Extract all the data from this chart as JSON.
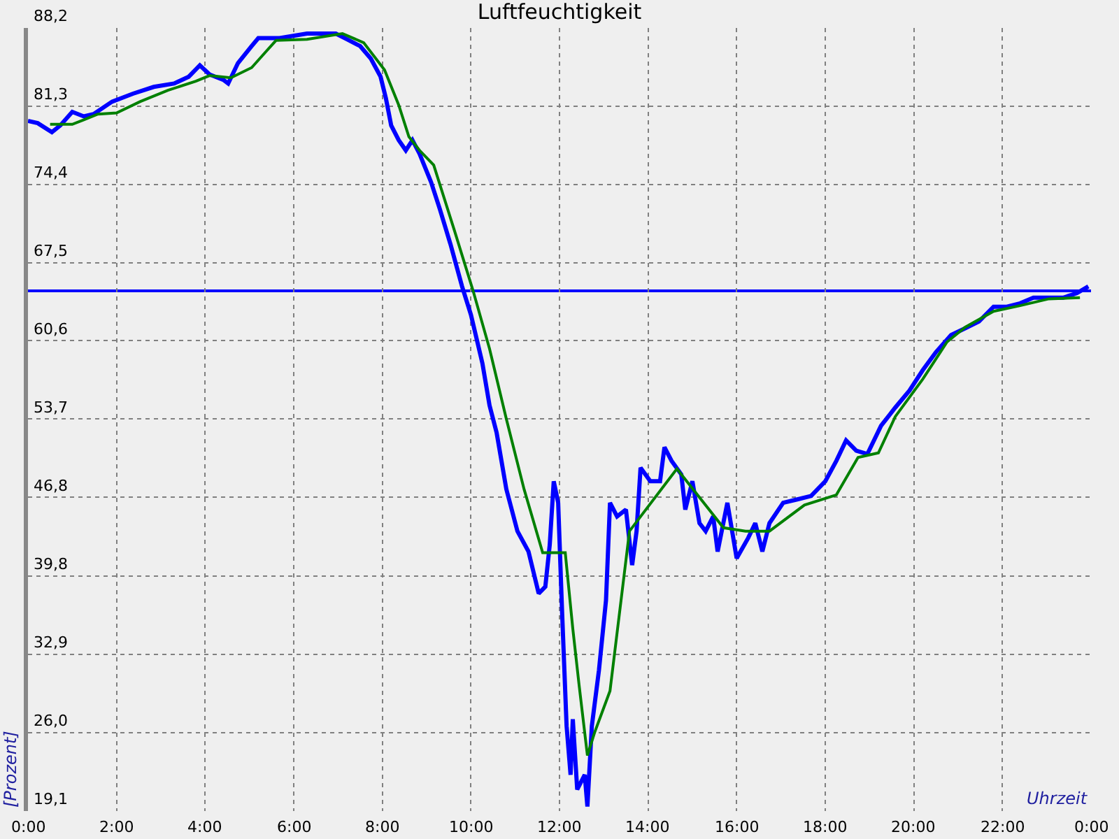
{
  "chart_data": {
    "type": "line",
    "title": "Luftfeuchtigkeit",
    "xlabel": "Uhrzeit",
    "ylabel": "[Prozent]",
    "xlim": [
      0,
      24
    ],
    "ylim": [
      19.1,
      88.2
    ],
    "xticks": [
      {
        "value": 0,
        "label": "0:00"
      },
      {
        "value": 2,
        "label": "2:00"
      },
      {
        "value": 4,
        "label": "4:00"
      },
      {
        "value": 6,
        "label": "6:00"
      },
      {
        "value": 8,
        "label": "8:00"
      },
      {
        "value": 10,
        "label": "10:00"
      },
      {
        "value": 12,
        "label": "12:00"
      },
      {
        "value": 14,
        "label": "14:00"
      },
      {
        "value": 16,
        "label": "16:00"
      },
      {
        "value": 18,
        "label": "18:00"
      },
      {
        "value": 20,
        "label": "20:00"
      },
      {
        "value": 22,
        "label": "22:00"
      },
      {
        "value": 24,
        "label": "0:00"
      }
    ],
    "yticks": [
      {
        "value": 19.1,
        "label": "19,1"
      },
      {
        "value": 26.0,
        "label": "26,0"
      },
      {
        "value": 32.9,
        "label": "32,9"
      },
      {
        "value": 39.8,
        "label": "39,8"
      },
      {
        "value": 46.8,
        "label": "46,8"
      },
      {
        "value": 53.7,
        "label": "53,7"
      },
      {
        "value": 60.6,
        "label": "60,6"
      },
      {
        "value": 67.5,
        "label": "67,5"
      },
      {
        "value": 74.4,
        "label": "74,4"
      },
      {
        "value": 81.3,
        "label": "81,3"
      },
      {
        "value": 88.2,
        "label": "88,2"
      }
    ],
    "grid": true,
    "marker": "none",
    "line_style": "solid",
    "ref_lines": [
      {
        "axis": "y",
        "value": 65.0,
        "color": "#0000ff",
        "line_style": "solid"
      }
    ],
    "series": [
      {
        "color": "#0000ff",
        "x": [
          0,
          0.22,
          0.54,
          0.73,
          1.0,
          1.26,
          1.48,
          1.9,
          2.37,
          2.84,
          3.3,
          3.63,
          3.88,
          4.1,
          4.42,
          4.52,
          4.74,
          5.05,
          5.2,
          5.68,
          6.3,
          6.95,
          7.2,
          7.5,
          7.74,
          7.96,
          8.08,
          8.2,
          8.37,
          8.53,
          8.68,
          8.84,
          9.1,
          9.3,
          9.54,
          9.8,
          10.0,
          10.26,
          10.42,
          10.58,
          10.8,
          11.05,
          11.3,
          11.53,
          11.68,
          11.78,
          11.87,
          11.97,
          12.06,
          12.16,
          12.25,
          12.3,
          12.4,
          12.57,
          12.63,
          12.73,
          12.89,
          13.05,
          13.14,
          13.3,
          13.5,
          13.64,
          13.74,
          13.83,
          14.05,
          14.27,
          14.37,
          14.53,
          14.75,
          14.84,
          15.0,
          15.16,
          15.3,
          15.47,
          15.57,
          15.79,
          16.0,
          16.26,
          16.42,
          16.58,
          16.74,
          17.05,
          17.37,
          17.68,
          18.0,
          18.25,
          18.47,
          18.7,
          18.95,
          19.26,
          19.58,
          19.9,
          20.2,
          20.5,
          20.84,
          21.16,
          21.47,
          21.8,
          22.1,
          22.4,
          22.7,
          23.05,
          23.37,
          23.68,
          23.94
        ],
        "values": [
          80.0,
          79.8,
          79.0,
          79.6,
          80.8,
          80.4,
          80.6,
          81.7,
          82.4,
          83.0,
          83.3,
          83.9,
          84.9,
          84.1,
          83.6,
          83.3,
          85.1,
          86.6,
          87.3,
          87.3,
          87.7,
          87.7,
          87.2,
          86.6,
          85.5,
          83.9,
          82.0,
          79.6,
          78.3,
          77.4,
          78.3,
          77.1,
          74.6,
          72.2,
          69.1,
          65.4,
          62.9,
          58.6,
          54.9,
          52.5,
          47.5,
          43.8,
          42.0,
          38.3,
          38.9,
          42.6,
          48.2,
          46.3,
          36.5,
          26.6,
          22.3,
          27.2,
          21.0,
          22.3,
          19.5,
          26.6,
          31.5,
          37.7,
          46.3,
          45.1,
          45.7,
          40.8,
          43.8,
          49.4,
          48.2,
          48.2,
          51.2,
          50.0,
          48.8,
          45.7,
          48.2,
          44.5,
          43.8,
          45.1,
          42.0,
          46.3,
          41.4,
          43.2,
          44.5,
          42.0,
          44.5,
          46.3,
          46.6,
          46.9,
          48.2,
          50.0,
          51.8,
          50.9,
          50.6,
          53.1,
          54.7,
          56.2,
          58.0,
          59.6,
          61.1,
          61.7,
          62.3,
          63.6,
          63.6,
          63.9,
          64.4,
          64.4,
          64.4,
          64.8,
          65.4
        ]
      },
      {
        "color": "#008000",
        "x": [
          0.5,
          1.0,
          1.26,
          1.58,
          2.0,
          2.53,
          3.16,
          3.79,
          4.1,
          4.58,
          5.05,
          5.37,
          5.6,
          6.3,
          7.1,
          7.58,
          8.05,
          8.37,
          8.6,
          8.84,
          9.16,
          9.63,
          10.05,
          10.42,
          10.8,
          11.2,
          11.62,
          12.13,
          12.3,
          12.44,
          12.63,
          12.79,
          13.14,
          13.58,
          14.65,
          15.7,
          16.2,
          16.74,
          17.53,
          18.25,
          18.74,
          19.2,
          19.58,
          20.2,
          20.75,
          21.16,
          21.8,
          22.4,
          23.05,
          23.75
        ],
        "values": [
          79.7,
          79.7,
          80.1,
          80.6,
          80.7,
          81.7,
          82.7,
          83.5,
          84.0,
          83.8,
          84.7,
          86.1,
          87.1,
          87.2,
          87.7,
          86.9,
          84.5,
          81.4,
          78.6,
          77.4,
          76.1,
          70.3,
          65.0,
          59.9,
          53.7,
          47.5,
          41.9,
          41.9,
          35.2,
          30.3,
          24.0,
          26.0,
          29.7,
          43.8,
          49.3,
          44.1,
          43.8,
          43.8,
          46.1,
          47.0,
          50.3,
          50.7,
          53.9,
          57.2,
          60.5,
          61.8,
          63.2,
          63.7,
          64.3,
          64.4
        ]
      }
    ]
  }
}
